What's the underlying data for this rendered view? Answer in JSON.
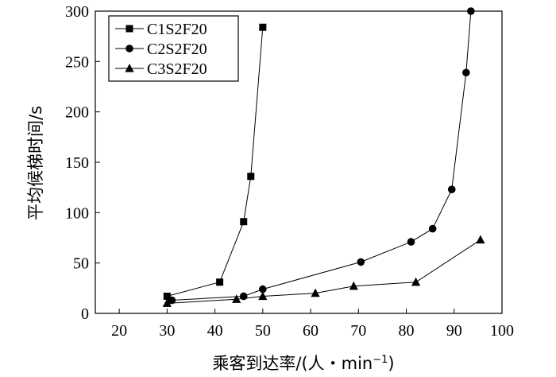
{
  "chart_data": {
    "type": "line",
    "title": "",
    "xlabel": "乘客到达率/(人・min",
    "xlabel_superscript": "−1",
    "xlabel_suffix": ")",
    "ylabel": "平均候梯时间/s",
    "xlim": [
      15,
      100
    ],
    "ylim": [
      0,
      300
    ],
    "xticks": [
      20,
      30,
      40,
      50,
      60,
      70,
      80,
      90,
      100
    ],
    "yticks": [
      0,
      50,
      100,
      150,
      200,
      250,
      300
    ],
    "grid": false,
    "legend_position": "top-left",
    "series": [
      {
        "name": "C1S2F20",
        "marker": "square",
        "x": [
          30,
          41,
          46,
          47.5,
          50
        ],
        "y": [
          17,
          31,
          91,
          136,
          284
        ]
      },
      {
        "name": "C2S2F20",
        "marker": "circle",
        "x": [
          31,
          46,
          50,
          70.5,
          81,
          85.5,
          89.5,
          92.5,
          93.5
        ],
        "y": [
          13,
          17,
          24,
          51,
          71,
          84,
          123,
          239,
          300
        ]
      },
      {
        "name": "C3S2F20",
        "marker": "triangle",
        "x": [
          30,
          44.5,
          50,
          61,
          69,
          82,
          95.5
        ],
        "y": [
          10,
          14,
          17,
          20,
          27,
          31,
          73
        ]
      }
    ]
  }
}
